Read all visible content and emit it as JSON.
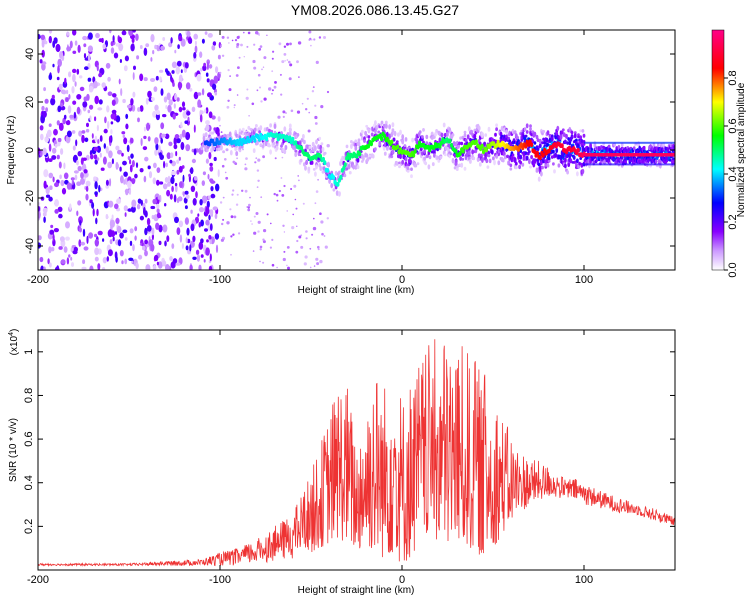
{
  "title": "YM08.2026.086.13.45.G27",
  "chart_data": [
    {
      "type": "heatmap",
      "name": "spectrogram",
      "title": "YM08.2026.086.13.45.G27",
      "xlabel": "Height of straight line (km)",
      "ylabel": "Frequency (Hz)",
      "xlim": [
        -200,
        150
      ],
      "ylim": [
        -50,
        50
      ],
      "xticks": [
        -200,
        -100,
        0,
        100
      ],
      "yticks": [
        -40,
        -20,
        0,
        20,
        40
      ],
      "colorbar": {
        "label": "Normalized spectral amplitude",
        "range": [
          0,
          1
        ],
        "ticks": [
          "0.0",
          "0.2",
          "0.4",
          "0.6",
          "0.8"
        ],
        "colors": [
          "#ffffff",
          "#8800ff",
          "#0000ff",
          "#00ffff",
          "#00ff00",
          "#ffff00",
          "#ff0000",
          "#ff00aa"
        ]
      },
      "ridge": {
        "x": [
          -110,
          -100,
          -90,
          -80,
          -70,
          -60,
          -55,
          -50,
          -45,
          -40,
          -35,
          -30,
          -25,
          -20,
          -15,
          -10,
          -5,
          0,
          5,
          10,
          15,
          20,
          25,
          30,
          35,
          40,
          45,
          50,
          55,
          60,
          65,
          70,
          75,
          80,
          85,
          90,
          95,
          100,
          110,
          120,
          130,
          140,
          150
        ],
        "y": [
          2,
          4,
          3,
          5,
          6,
          4,
          0,
          -4,
          -2,
          -10,
          -14,
          -3,
          -2,
          2,
          4,
          6,
          2,
          -1,
          -3,
          3,
          0,
          2,
          5,
          -2,
          1,
          4,
          0,
          2,
          3,
          0,
          1,
          3,
          -3,
          0,
          2,
          0,
          0,
          -2,
          -2,
          -2,
          -2,
          -2,
          -2
        ],
        "amplitude": [
          0.3,
          0.35,
          0.4,
          0.4,
          0.45,
          0.45,
          0.5,
          0.5,
          0.5,
          0.4,
          0.45,
          0.5,
          0.5,
          0.55,
          0.55,
          0.55,
          0.6,
          0.6,
          0.6,
          0.55,
          0.55,
          0.55,
          0.5,
          0.55,
          0.6,
          0.6,
          0.6,
          0.65,
          0.7,
          0.75,
          0.8,
          0.85,
          0.85,
          0.85,
          0.9,
          0.9,
          0.9,
          0.95,
          0.95,
          0.95,
          0.95,
          0.95,
          0.95
        ]
      }
    },
    {
      "type": "line",
      "name": "snr",
      "xlabel": "Height of straight line (km)",
      "ylabel": "SNR (10 * v/v)",
      "yscale_label": "(x10",
      "yscale_exp": "4",
      "yscale_close": ")",
      "color": "#ee3333",
      "xlim": [
        -200,
        150
      ],
      "ylim": [
        0,
        1.1
      ],
      "xticks": [
        -200,
        -100,
        0,
        100
      ],
      "yticks": [
        0.2,
        0.4,
        0.6,
        0.8,
        1
      ],
      "envelope": {
        "x": [
          -200,
          -150,
          -110,
          -100,
          -90,
          -80,
          -70,
          -60,
          -50,
          -45,
          -40,
          -35,
          -30,
          -25,
          -20,
          -15,
          -10,
          -5,
          0,
          5,
          10,
          15,
          20,
          25,
          30,
          35,
          40,
          45,
          50,
          55,
          60,
          65,
          70,
          75,
          80,
          85,
          90,
          95,
          100,
          110,
          120,
          130,
          140,
          150
        ],
        "upper": [
          0.03,
          0.03,
          0.05,
          0.08,
          0.1,
          0.14,
          0.2,
          0.26,
          0.45,
          0.58,
          0.72,
          0.88,
          0.86,
          0.6,
          0.8,
          0.95,
          0.85,
          1.08,
          0.8,
          0.9,
          0.98,
          1.04,
          1.07,
          1.09,
          1.06,
          1.02,
          0.96,
          0.9,
          0.85,
          0.72,
          0.62,
          0.56,
          0.52,
          0.5,
          0.48,
          0.44,
          0.42,
          0.42,
          0.4,
          0.36,
          0.33,
          0.3,
          0.28,
          0.24
        ],
        "lower": [
          0.02,
          0.02,
          0.02,
          0.02,
          0.02,
          0.03,
          0.04,
          0.05,
          0.08,
          0.1,
          0.12,
          0.14,
          0.12,
          0.08,
          0.1,
          0.08,
          0.05,
          0.07,
          0.02,
          0.05,
          0.12,
          0.15,
          0.12,
          0.1,
          0.12,
          0.1,
          0.08,
          0.06,
          0.1,
          0.16,
          0.22,
          0.26,
          0.3,
          0.32,
          0.33,
          0.33,
          0.32,
          0.32,
          0.3,
          0.28,
          0.26,
          0.25,
          0.22,
          0.2
        ]
      }
    }
  ]
}
